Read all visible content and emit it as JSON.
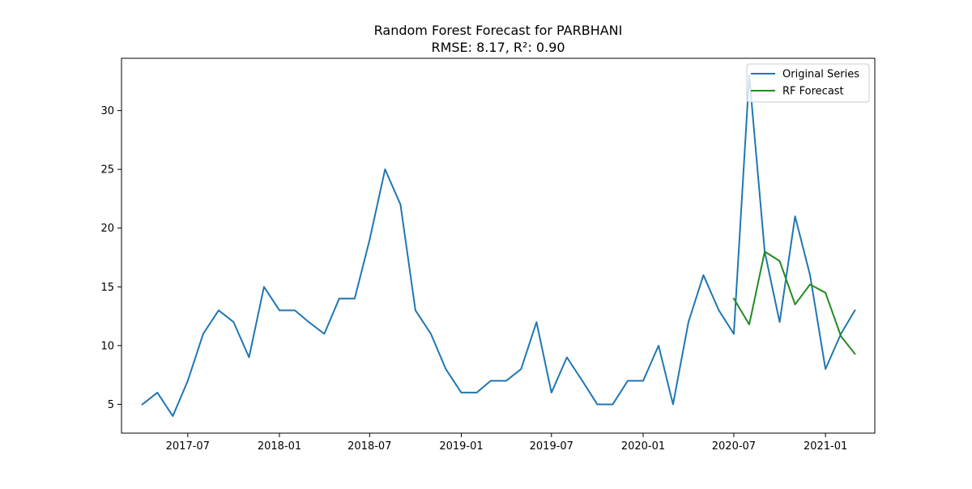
{
  "chart_data": {
    "type": "line",
    "title": "Random Forest Forecast for PARBHANI",
    "subtitle": "RMSE: 8.17, R²: 0.90",
    "xlabel": "",
    "ylabel": "",
    "xlim": [
      "2017-02-18",
      "2021-04-10"
    ],
    "ylim": [
      2.55,
      34.45
    ],
    "grid": false,
    "legend_position": "top-right",
    "x_ticks": [
      {
        "date": "2017-07-01",
        "label": "2017-07"
      },
      {
        "date": "2018-01-01",
        "label": "2018-01"
      },
      {
        "date": "2018-07-01",
        "label": "2018-07"
      },
      {
        "date": "2019-01-01",
        "label": "2019-01"
      },
      {
        "date": "2019-07-01",
        "label": "2019-07"
      },
      {
        "date": "2020-01-01",
        "label": "2020-01"
      },
      {
        "date": "2020-07-01",
        "label": "2020-07"
      },
      {
        "date": "2021-01-01",
        "label": "2021-01"
      }
    ],
    "y_ticks": [
      {
        "value": 5,
        "label": "5"
      },
      {
        "value": 10,
        "label": "10"
      },
      {
        "value": 15,
        "label": "15"
      },
      {
        "value": 20,
        "label": "20"
      },
      {
        "value": 25,
        "label": "25"
      },
      {
        "value": 30,
        "label": "30"
      }
    ],
    "series": [
      {
        "name": "Original Series",
        "color": "#1f77b4",
        "x": [
          "2017-04-01",
          "2017-05-01",
          "2017-06-01",
          "2017-07-01",
          "2017-08-01",
          "2017-09-01",
          "2017-10-01",
          "2017-11-01",
          "2017-12-01",
          "2018-01-01",
          "2018-02-01",
          "2018-03-01",
          "2018-04-01",
          "2018-05-01",
          "2018-06-01",
          "2018-07-01",
          "2018-08-01",
          "2018-09-01",
          "2018-10-01",
          "2018-11-01",
          "2018-12-01",
          "2019-01-01",
          "2019-02-01",
          "2019-03-01",
          "2019-04-01",
          "2019-05-01",
          "2019-06-01",
          "2019-07-01",
          "2019-08-01",
          "2019-09-01",
          "2019-10-01",
          "2019-11-01",
          "2019-12-01",
          "2020-01-01",
          "2020-02-01",
          "2020-03-01",
          "2020-04-01",
          "2020-05-01",
          "2020-06-01",
          "2020-07-01",
          "2020-08-01",
          "2020-09-01",
          "2020-10-01",
          "2020-11-01",
          "2020-12-01",
          "2021-01-01",
          "2021-02-01",
          "2021-03-01"
        ],
        "y": [
          5,
          6,
          4,
          7,
          11,
          13,
          12,
          9,
          15,
          13,
          13,
          12,
          11,
          14,
          14,
          19,
          25,
          22,
          13,
          11,
          8,
          6,
          6,
          7,
          7,
          8,
          12,
          6,
          9,
          7,
          5,
          5,
          7,
          7,
          10,
          5,
          12,
          16,
          13,
          11,
          33,
          18,
          12,
          21,
          16,
          8,
          11,
          13
        ]
      },
      {
        "name": "RF Forecast",
        "color": "#228b22",
        "x": [
          "2020-07-01",
          "2020-08-01",
          "2020-09-01",
          "2020-10-01",
          "2020-11-01",
          "2020-12-01",
          "2021-01-01",
          "2021-02-01",
          "2021-03-01"
        ],
        "y": [
          14.0,
          11.8,
          18.0,
          17.2,
          13.5,
          15.2,
          14.5,
          10.8,
          9.3
        ]
      }
    ]
  }
}
